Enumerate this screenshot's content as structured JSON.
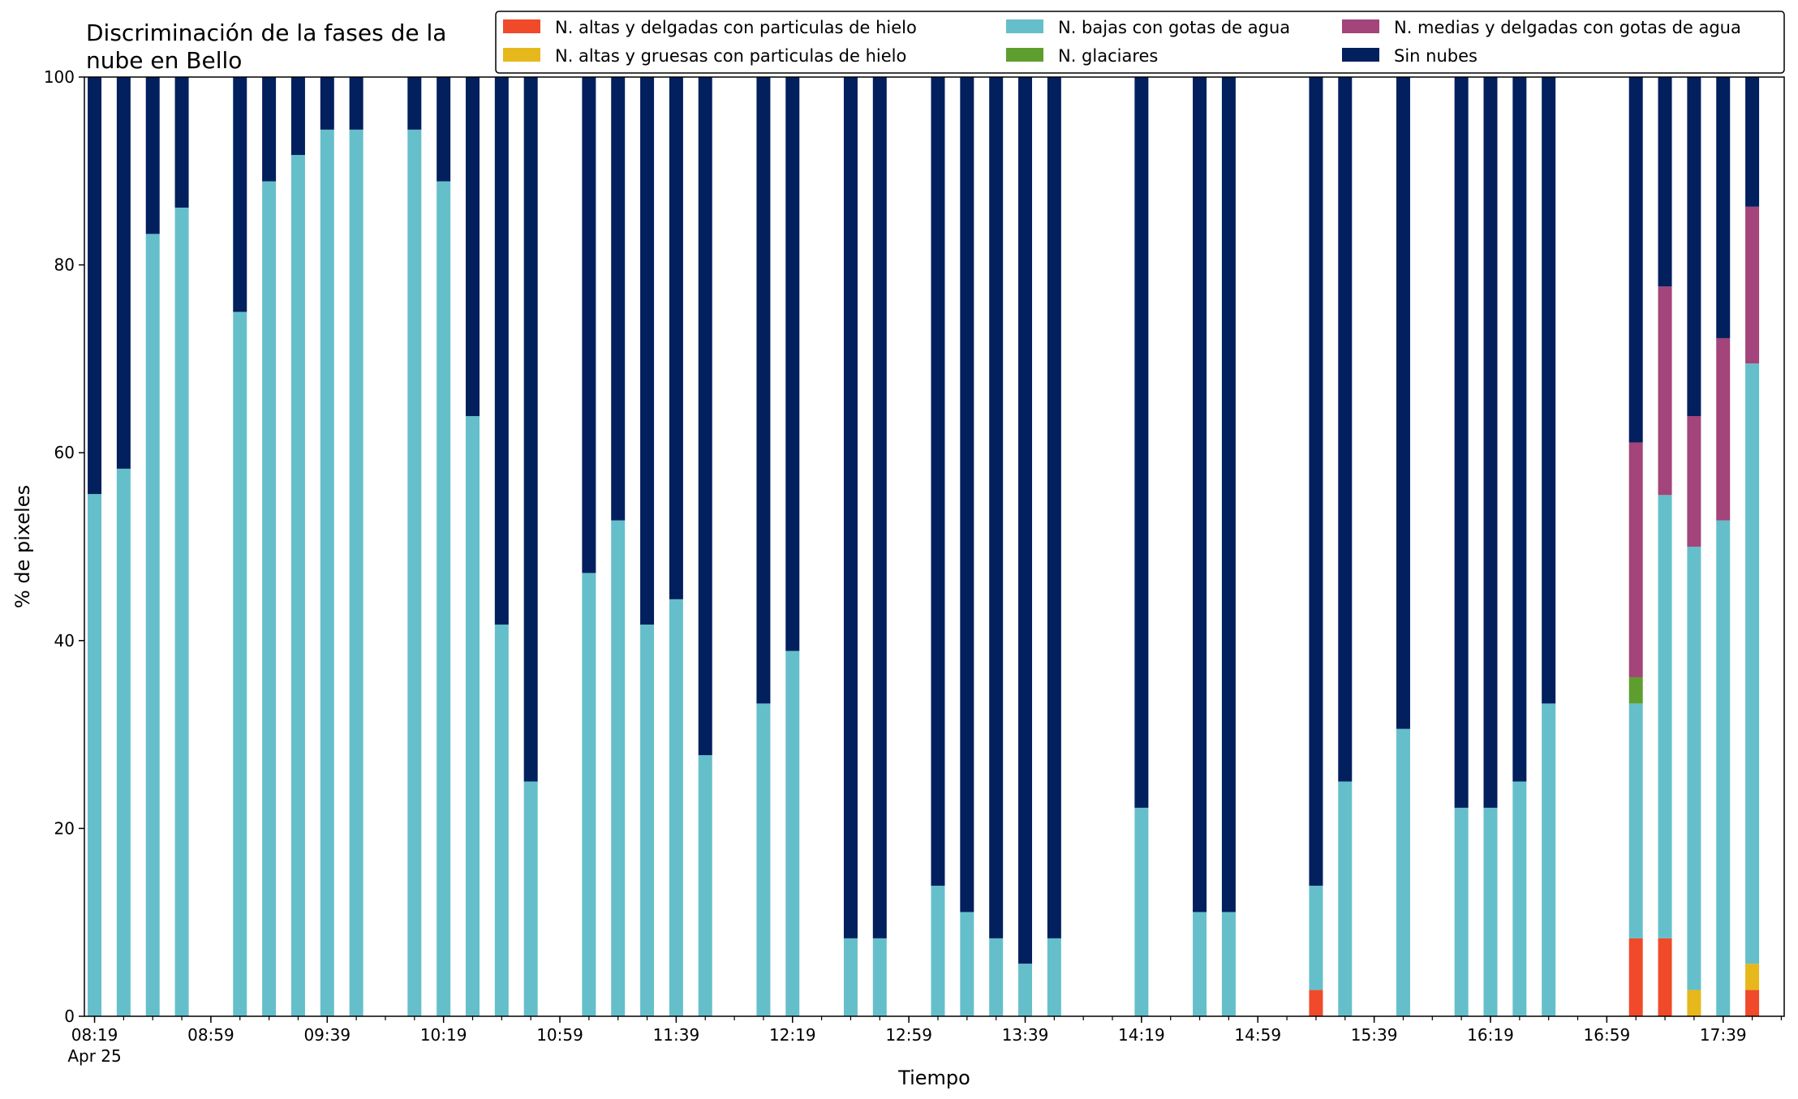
{
  "chart_data": {
    "type": "bar",
    "stacked": true,
    "title": [
      "Discriminación de la fases de la",
      "nube en Bello"
    ],
    "xlabel": "Tiempo",
    "ylabel": "% de pixeles",
    "ylim": [
      0,
      100
    ],
    "yticks": [
      0,
      20,
      40,
      60,
      80,
      100
    ],
    "date_label": "Apr 25",
    "legend_position": "top-right",
    "xaxis": {
      "start": "08:19",
      "end": "17:59",
      "minor_step_min": 10
    },
    "xticks": [
      "08:19",
      "08:59",
      "09:39",
      "10:19",
      "10:59",
      "11:39",
      "12:19",
      "12:59",
      "13:39",
      "14:19",
      "14:59",
      "15:39",
      "16:19",
      "16:59",
      "17:39"
    ],
    "series": [
      {
        "key": "hielo_delgadas",
        "name": "N. altas y delgadas con particulas de hielo",
        "color": "#f04a2a"
      },
      {
        "key": "hielo_gruesas",
        "name": "N. altas y gruesas con particulas de hielo",
        "color": "#e6b81c"
      },
      {
        "key": "bajas_agua",
        "name": "N. bajas con gotas de agua",
        "color": "#65bfcb"
      },
      {
        "key": "glaciares",
        "name": "N. glaciares",
        "color": "#5e9e2e"
      },
      {
        "key": "medias_agua",
        "name": "N. medias y delgadas con gotas de agua",
        "color": "#a3447a"
      },
      {
        "key": "sin_nubes",
        "name": "Sin nubes",
        "color": "#021f5e"
      }
    ],
    "bars": [
      {
        "time": "08:19",
        "hielo_delgadas": 0,
        "hielo_gruesas": 0,
        "bajas_agua": 55.6,
        "glaciares": 0,
        "medias_agua": 0,
        "sin_nubes": 44.4
      },
      {
        "time": "08:29",
        "hielo_delgadas": 0,
        "hielo_gruesas": 0,
        "bajas_agua": 58.3,
        "glaciares": 0,
        "medias_agua": 0,
        "sin_nubes": 41.7
      },
      {
        "time": "08:39",
        "hielo_delgadas": 0,
        "hielo_gruesas": 0,
        "bajas_agua": 83.3,
        "glaciares": 0,
        "medias_agua": 0,
        "sin_nubes": 16.7
      },
      {
        "time": "08:49",
        "hielo_delgadas": 0,
        "hielo_gruesas": 0,
        "bajas_agua": 86.1,
        "glaciares": 0,
        "medias_agua": 0,
        "sin_nubes": 13.9
      },
      {
        "time": "09:09",
        "hielo_delgadas": 0,
        "hielo_gruesas": 0,
        "bajas_agua": 75.0,
        "glaciares": 0,
        "medias_agua": 0,
        "sin_nubes": 25.0
      },
      {
        "time": "09:19",
        "hielo_delgadas": 0,
        "hielo_gruesas": 0,
        "bajas_agua": 88.9,
        "glaciares": 0,
        "medias_agua": 0,
        "sin_nubes": 11.1
      },
      {
        "time": "09:29",
        "hielo_delgadas": 0,
        "hielo_gruesas": 0,
        "bajas_agua": 91.7,
        "glaciares": 0,
        "medias_agua": 0,
        "sin_nubes": 8.3
      },
      {
        "time": "09:39",
        "hielo_delgadas": 0,
        "hielo_gruesas": 0,
        "bajas_agua": 94.4,
        "glaciares": 0,
        "medias_agua": 0,
        "sin_nubes": 5.6
      },
      {
        "time": "09:49",
        "hielo_delgadas": 0,
        "hielo_gruesas": 0,
        "bajas_agua": 94.4,
        "glaciares": 0,
        "medias_agua": 0,
        "sin_nubes": 5.6
      },
      {
        "time": "10:09",
        "hielo_delgadas": 0,
        "hielo_gruesas": 0,
        "bajas_agua": 94.4,
        "glaciares": 0,
        "medias_agua": 0,
        "sin_nubes": 5.6
      },
      {
        "time": "10:19",
        "hielo_delgadas": 0,
        "hielo_gruesas": 0,
        "bajas_agua": 88.9,
        "glaciares": 0,
        "medias_agua": 0,
        "sin_nubes": 11.1
      },
      {
        "time": "10:29",
        "hielo_delgadas": 0,
        "hielo_gruesas": 0,
        "bajas_agua": 63.9,
        "glaciares": 0,
        "medias_agua": 0,
        "sin_nubes": 36.1
      },
      {
        "time": "10:39",
        "hielo_delgadas": 0,
        "hielo_gruesas": 0,
        "bajas_agua": 41.7,
        "glaciares": 0,
        "medias_agua": 0,
        "sin_nubes": 58.3
      },
      {
        "time": "10:49",
        "hielo_delgadas": 0,
        "hielo_gruesas": 0,
        "bajas_agua": 25.0,
        "glaciares": 0,
        "medias_agua": 0,
        "sin_nubes": 75.0
      },
      {
        "time": "11:09",
        "hielo_delgadas": 0,
        "hielo_gruesas": 0,
        "bajas_agua": 47.2,
        "glaciares": 0,
        "medias_agua": 0,
        "sin_nubes": 52.8
      },
      {
        "time": "11:19",
        "hielo_delgadas": 0,
        "hielo_gruesas": 0,
        "bajas_agua": 52.8,
        "glaciares": 0,
        "medias_agua": 0,
        "sin_nubes": 47.2
      },
      {
        "time": "11:29",
        "hielo_delgadas": 0,
        "hielo_gruesas": 0,
        "bajas_agua": 41.7,
        "glaciares": 0,
        "medias_agua": 0,
        "sin_nubes": 58.3
      },
      {
        "time": "11:39",
        "hielo_delgadas": 0,
        "hielo_gruesas": 0,
        "bajas_agua": 44.4,
        "glaciares": 0,
        "medias_agua": 0,
        "sin_nubes": 55.6
      },
      {
        "time": "11:49",
        "hielo_delgadas": 0,
        "hielo_gruesas": 0,
        "bajas_agua": 27.8,
        "glaciares": 0,
        "medias_agua": 0,
        "sin_nubes": 72.2
      },
      {
        "time": "12:09",
        "hielo_delgadas": 0,
        "hielo_gruesas": 0,
        "bajas_agua": 33.3,
        "glaciares": 0,
        "medias_agua": 0,
        "sin_nubes": 66.7
      },
      {
        "time": "12:19",
        "hielo_delgadas": 0,
        "hielo_gruesas": 0,
        "bajas_agua": 38.9,
        "glaciares": 0,
        "medias_agua": 0,
        "sin_nubes": 61.1
      },
      {
        "time": "12:39",
        "hielo_delgadas": 0,
        "hielo_gruesas": 0,
        "bajas_agua": 8.3,
        "glaciares": 0,
        "medias_agua": 0,
        "sin_nubes": 91.7
      },
      {
        "time": "12:49",
        "hielo_delgadas": 0,
        "hielo_gruesas": 0,
        "bajas_agua": 8.3,
        "glaciares": 0,
        "medias_agua": 0,
        "sin_nubes": 91.7
      },
      {
        "time": "13:09",
        "hielo_delgadas": 0,
        "hielo_gruesas": 0,
        "bajas_agua": 13.9,
        "glaciares": 0,
        "medias_agua": 0,
        "sin_nubes": 86.1
      },
      {
        "time": "13:19",
        "hielo_delgadas": 0,
        "hielo_gruesas": 0,
        "bajas_agua": 11.1,
        "glaciares": 0,
        "medias_agua": 0,
        "sin_nubes": 88.9
      },
      {
        "time": "13:29",
        "hielo_delgadas": 0,
        "hielo_gruesas": 0,
        "bajas_agua": 8.3,
        "glaciares": 0,
        "medias_agua": 0,
        "sin_nubes": 91.7
      },
      {
        "time": "13:39",
        "hielo_delgadas": 0,
        "hielo_gruesas": 0,
        "bajas_agua": 5.6,
        "glaciares": 0,
        "medias_agua": 0,
        "sin_nubes": 94.4
      },
      {
        "time": "13:49",
        "hielo_delgadas": 0,
        "hielo_gruesas": 0,
        "bajas_agua": 8.3,
        "glaciares": 0,
        "medias_agua": 0,
        "sin_nubes": 91.7
      },
      {
        "time": "14:19",
        "hielo_delgadas": 0,
        "hielo_gruesas": 0,
        "bajas_agua": 22.2,
        "glaciares": 0,
        "medias_agua": 0,
        "sin_nubes": 77.8
      },
      {
        "time": "14:39",
        "hielo_delgadas": 0,
        "hielo_gruesas": 0,
        "bajas_agua": 11.1,
        "glaciares": 0,
        "medias_agua": 0,
        "sin_nubes": 88.9
      },
      {
        "time": "14:49",
        "hielo_delgadas": 0,
        "hielo_gruesas": 0,
        "bajas_agua": 11.1,
        "glaciares": 0,
        "medias_agua": 0,
        "sin_nubes": 88.9
      },
      {
        "time": "15:19",
        "hielo_delgadas": 2.8,
        "hielo_gruesas": 0,
        "bajas_agua": 11.1,
        "glaciares": 0,
        "medias_agua": 0,
        "sin_nubes": 86.1
      },
      {
        "time": "15:29",
        "hielo_delgadas": 0,
        "hielo_gruesas": 0,
        "bajas_agua": 25.0,
        "glaciares": 0,
        "medias_agua": 0,
        "sin_nubes": 75.0
      },
      {
        "time": "15:49",
        "hielo_delgadas": 0,
        "hielo_gruesas": 0,
        "bajas_agua": 30.6,
        "glaciares": 0,
        "medias_agua": 0,
        "sin_nubes": 69.4
      },
      {
        "time": "16:09",
        "hielo_delgadas": 0,
        "hielo_gruesas": 0,
        "bajas_agua": 22.2,
        "glaciares": 0,
        "medias_agua": 0,
        "sin_nubes": 77.8
      },
      {
        "time": "16:19",
        "hielo_delgadas": 0,
        "hielo_gruesas": 0,
        "bajas_agua": 22.2,
        "glaciares": 0,
        "medias_agua": 0,
        "sin_nubes": 77.8
      },
      {
        "time": "16:29",
        "hielo_delgadas": 0,
        "hielo_gruesas": 0,
        "bajas_agua": 25.0,
        "glaciares": 0,
        "medias_agua": 0,
        "sin_nubes": 75.0
      },
      {
        "time": "16:39",
        "hielo_delgadas": 0,
        "hielo_gruesas": 0,
        "bajas_agua": 33.3,
        "glaciares": 0,
        "medias_agua": 0,
        "sin_nubes": 66.7
      },
      {
        "time": "17:09",
        "hielo_delgadas": 8.3,
        "hielo_gruesas": 0,
        "bajas_agua": 25.0,
        "glaciares": 2.8,
        "medias_agua": 25.0,
        "sin_nubes": 38.9
      },
      {
        "time": "17:19",
        "hielo_delgadas": 8.3,
        "hielo_gruesas": 0,
        "bajas_agua": 47.2,
        "glaciares": 0,
        "medias_agua": 22.2,
        "sin_nubes": 22.3
      },
      {
        "time": "17:29",
        "hielo_delgadas": 0,
        "hielo_gruesas": 2.8,
        "bajas_agua": 47.2,
        "glaciares": 0,
        "medias_agua": 13.9,
        "sin_nubes": 36.1
      },
      {
        "time": "17:39",
        "hielo_delgadas": 0,
        "hielo_gruesas": 0,
        "bajas_agua": 52.8,
        "glaciares": 0,
        "medias_agua": 19.4,
        "sin_nubes": 27.8
      },
      {
        "time": "17:49",
        "hielo_delgadas": 2.8,
        "hielo_gruesas": 2.8,
        "bajas_agua": 63.9,
        "glaciares": 0,
        "medias_agua": 16.7,
        "sin_nubes": 13.8
      }
    ]
  }
}
